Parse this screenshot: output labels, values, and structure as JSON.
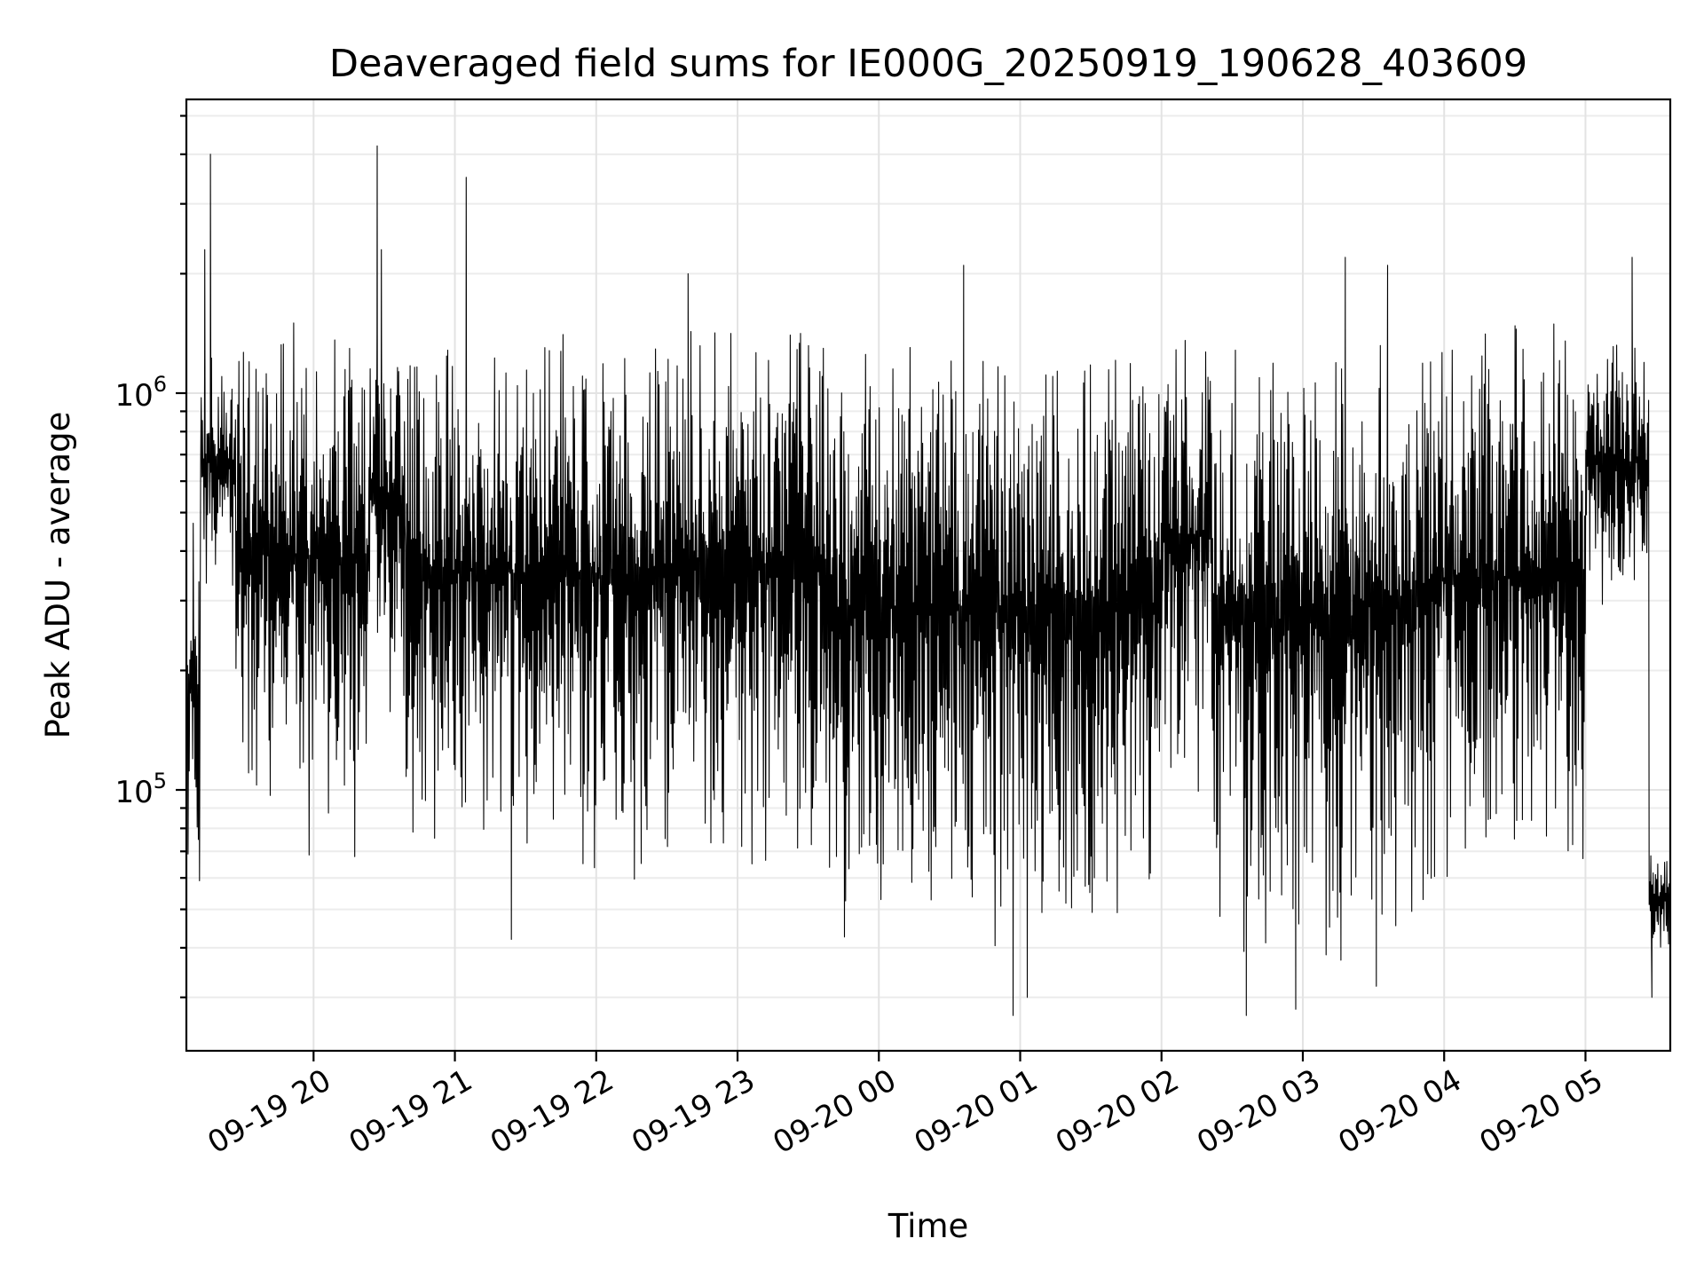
{
  "chart_data": {
    "type": "line",
    "title": "Deaveraged field sums for IE000G_20250919_190628_403609",
    "xlabel": "Time",
    "ylabel": "Peak ADU - average",
    "yscale": "log",
    "ylim": [
      22000,
      5500000
    ],
    "xlim_hours": [
      19.1,
      29.6
    ],
    "x_ticks": [
      {
        "hour": 20,
        "label": "09-19 20"
      },
      {
        "hour": 21,
        "label": "09-19 21"
      },
      {
        "hour": 22,
        "label": "09-19 22"
      },
      {
        "hour": 23,
        "label": "09-19 23"
      },
      {
        "hour": 24,
        "label": "09-20 00"
      },
      {
        "hour": 25,
        "label": "09-20 01"
      },
      {
        "hour": 26,
        "label": "09-20 02"
      },
      {
        "hour": 27,
        "label": "09-20 03"
      },
      {
        "hour": 28,
        "label": "09-20 04"
      },
      {
        "hour": 29,
        "label": "09-20 05"
      }
    ],
    "y_ticks": [
      {
        "value": 100000,
        "base": "10",
        "exp": "5"
      },
      {
        "value": 1000000,
        "base": "10",
        "exp": "6"
      }
    ],
    "grid": true,
    "envelope_segments": [
      {
        "t0": 19.1,
        "t1": 19.2,
        "low": 50000,
        "high": 500000
      },
      {
        "t0": 19.2,
        "t1": 19.45,
        "low": 300000,
        "high": 1300000
      },
      {
        "t0": 19.45,
        "t1": 19.85,
        "low": 80000,
        "high": 1500000
      },
      {
        "t0": 19.85,
        "t1": 20.4,
        "low": 65000,
        "high": 1650000
      },
      {
        "t0": 20.4,
        "t1": 20.65,
        "low": 150000,
        "high": 1600000
      },
      {
        "t0": 20.65,
        "t1": 21.4,
        "low": 62000,
        "high": 1500000
      },
      {
        "t0": 21.4,
        "t1": 22.4,
        "low": 55000,
        "high": 1550000
      },
      {
        "t0": 22.4,
        "t1": 23.6,
        "low": 58000,
        "high": 1600000
      },
      {
        "t0": 23.6,
        "t1": 25.2,
        "low": 38000,
        "high": 1500000
      },
      {
        "t0": 25.2,
        "t1": 26.0,
        "low": 42000,
        "high": 1450000
      },
      {
        "t0": 26.0,
        "t1": 26.35,
        "low": 90000,
        "high": 1600000
      },
      {
        "t0": 26.35,
        "t1": 27.35,
        "low": 35000,
        "high": 1400000
      },
      {
        "t0": 27.35,
        "t1": 27.95,
        "low": 40000,
        "high": 1550000
      },
      {
        "t0": 27.95,
        "t1": 29.0,
        "low": 50000,
        "high": 1650000
      },
      {
        "t0": 29.0,
        "t1": 29.45,
        "low": 250000,
        "high": 1500000
      },
      {
        "t0": 29.45,
        "t1": 29.6,
        "low": 38000,
        "high": 70000
      }
    ],
    "spikes": [
      {
        "hour": 19.23,
        "value": 2300000
      },
      {
        "hour": 19.27,
        "value": 4000000
      },
      {
        "hour": 20.45,
        "value": 4200000
      },
      {
        "hour": 20.48,
        "value": 2300000
      },
      {
        "hour": 21.08,
        "value": 3500000
      },
      {
        "hour": 22.65,
        "value": 2000000
      },
      {
        "hour": 24.6,
        "value": 2100000
      },
      {
        "hour": 27.3,
        "value": 2200000
      },
      {
        "hour": 27.6,
        "value": 2100000
      },
      {
        "hour": 29.33,
        "value": 2200000
      }
    ],
    "dips": [
      {
        "hour": 21.4,
        "value": 42000
      },
      {
        "hour": 24.95,
        "value": 27000
      },
      {
        "hour": 25.05,
        "value": 30000
      },
      {
        "hour": 26.6,
        "value": 27000
      },
      {
        "hour": 26.95,
        "value": 28000
      },
      {
        "hour": 27.52,
        "value": 32000
      },
      {
        "hour": 29.47,
        "value": 30000
      }
    ]
  }
}
